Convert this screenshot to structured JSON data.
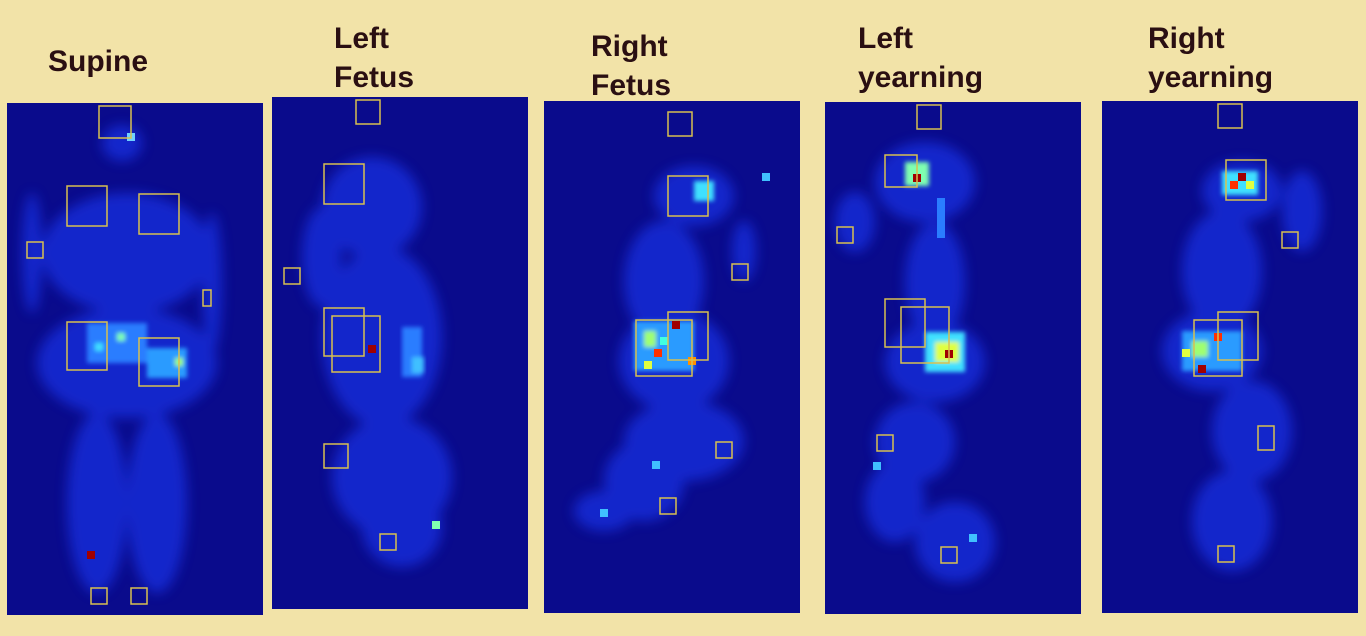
{
  "panels": [
    {
      "title": "Supine"
    },
    {
      "title": "Left\nFetus"
    },
    {
      "title": "Right\nFetus"
    },
    {
      "title": "Left\nyearning"
    },
    {
      "title": "Right\nyearning"
    }
  ]
}
